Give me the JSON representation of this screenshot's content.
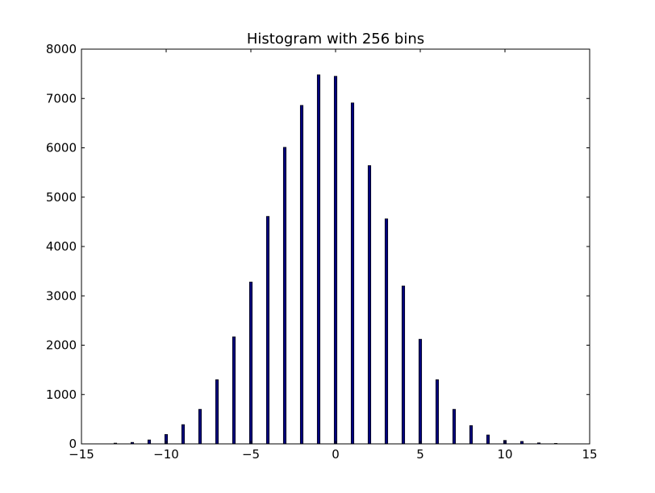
{
  "chart_data": {
    "type": "bar",
    "title": "Histogram with 256 bins",
    "xlabel": "",
    "ylabel": "",
    "xlim": [
      -15,
      15
    ],
    "ylim": [
      0,
      8000
    ],
    "grid": false,
    "xticks": [
      -15,
      -10,
      -5,
      0,
      5,
      10,
      15
    ],
    "xtick_labels": [
      "−15",
      "−10",
      "−5",
      "0",
      "5",
      "10",
      "15"
    ],
    "yticks": [
      0,
      1000,
      2000,
      3000,
      4000,
      5000,
      6000,
      7000,
      8000
    ],
    "ytick_labels": [
      "0",
      "1000",
      "2000",
      "3000",
      "4000",
      "5000",
      "6000",
      "7000",
      "8000"
    ],
    "bar_color": "#00007f",
    "bar_edge_color": "#000000",
    "x": [
      -13,
      -12,
      -11,
      -10,
      -9,
      -8,
      -7,
      -6,
      -5,
      -4,
      -3,
      -2,
      -1,
      0,
      1,
      2,
      3,
      4,
      5,
      6,
      7,
      8,
      9,
      10,
      11,
      12,
      13
    ],
    "values": [
      15,
      30,
      80,
      190,
      390,
      700,
      1300,
      2170,
      3280,
      4610,
      6010,
      6860,
      7480,
      7450,
      6910,
      5640,
      4560,
      3200,
      2120,
      1300,
      700,
      370,
      180,
      70,
      50,
      20,
      10
    ]
  }
}
